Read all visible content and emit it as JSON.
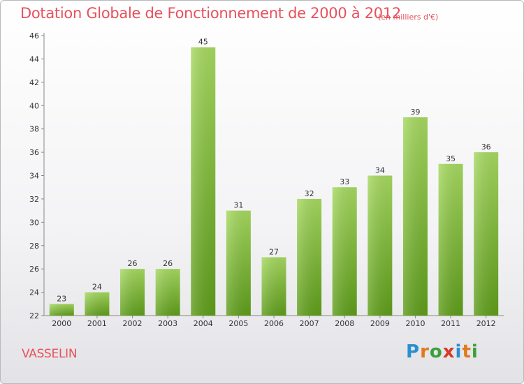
{
  "chart_data": {
    "type": "bar",
    "title": "Dotation Globale de Fonctionnement de 2000 à 2012",
    "subtitle": "(en milliers d'€)",
    "categories": [
      "2000",
      "2001",
      "2002",
      "2003",
      "2004",
      "2005",
      "2006",
      "2007",
      "2008",
      "2009",
      "2010",
      "2011",
      "2012"
    ],
    "values": [
      23,
      24,
      26,
      26,
      45,
      31,
      27,
      32,
      33,
      34,
      39,
      35,
      36
    ],
    "ylim": [
      22,
      46
    ],
    "yticks": [
      22,
      24,
      26,
      28,
      30,
      32,
      34,
      36,
      38,
      40,
      42,
      44,
      46
    ],
    "grid": false,
    "bar_color": "#7fc23a"
  },
  "place_name": "VASSELIN",
  "logo": {
    "text": "Proxiti",
    "colors": [
      "#2a8fd0",
      "#e07a1c",
      "#3aa03a",
      "#d63a2a",
      "#2a8fd0",
      "#e07a1c",
      "#3aa03a"
    ]
  }
}
